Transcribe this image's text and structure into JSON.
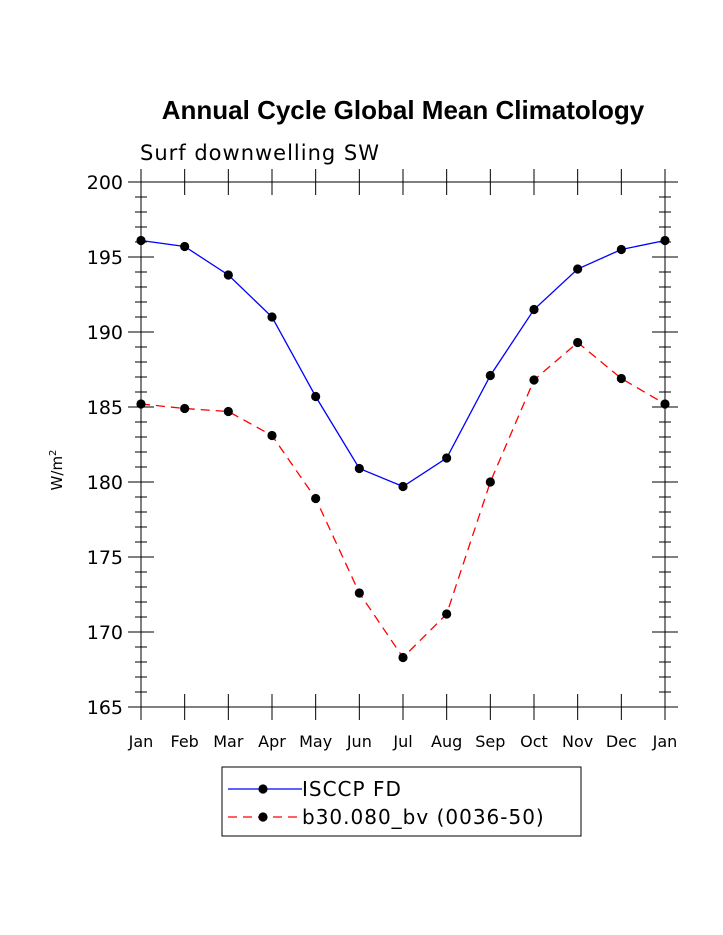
{
  "chart_data": {
    "type": "line",
    "title": "Annual Cycle Global Mean Climatology",
    "subtitle": "Surf downwelling SW",
    "xlabel": "",
    "ylabel": "W/m",
    "ylabel_sup": "2",
    "ylim": [
      165,
      200
    ],
    "yticks": [
      165,
      170,
      175,
      180,
      185,
      190,
      195,
      200
    ],
    "categories": [
      "Jan",
      "Feb",
      "Mar",
      "Apr",
      "May",
      "Jun",
      "Jul",
      "Aug",
      "Sep",
      "Oct",
      "Nov",
      "Dec",
      "Jan"
    ],
    "series": [
      {
        "name": "ISCCP FD",
        "color": "#0000ff",
        "dash": "solid",
        "values": [
          196.1,
          195.7,
          193.8,
          191.0,
          185.7,
          180.9,
          179.7,
          181.6,
          187.1,
          191.5,
          194.2,
          195.5,
          196.1
        ]
      },
      {
        "name": "b30.080_bv (0036-50)",
        "color": "#ff0000",
        "dash": "dashed",
        "values": [
          185.2,
          184.9,
          184.7,
          183.1,
          178.9,
          172.6,
          168.3,
          171.2,
          180.0,
          186.8,
          189.3,
          186.9,
          185.2
        ]
      }
    ],
    "legend": "bottom-center"
  }
}
